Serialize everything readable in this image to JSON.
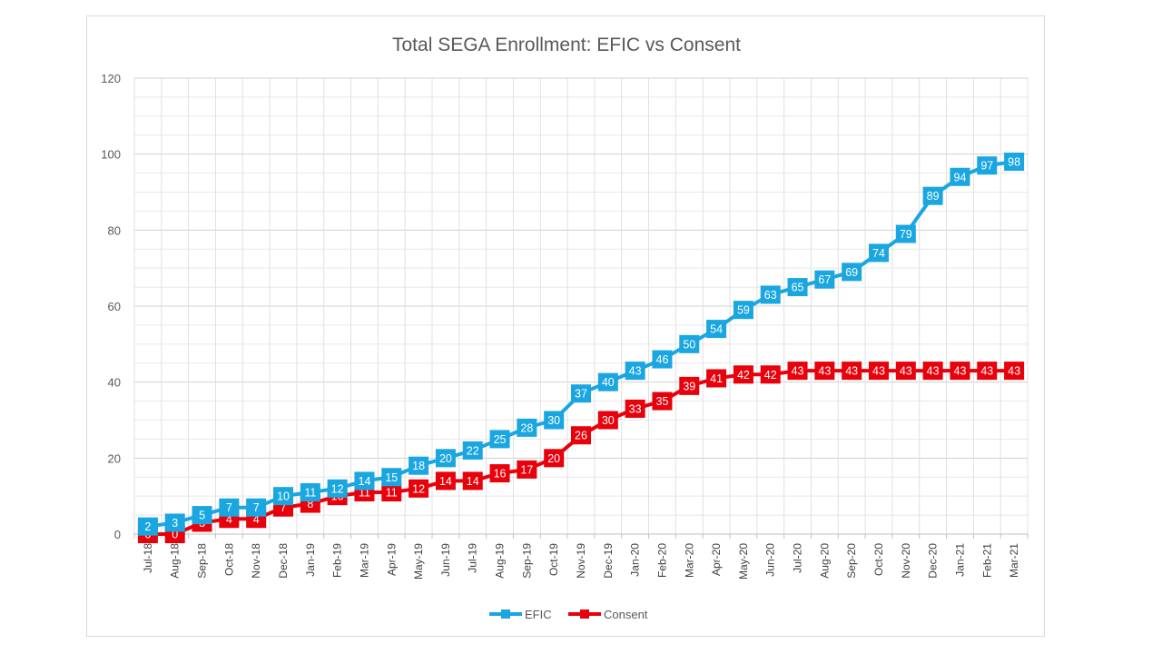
{
  "chart_data": {
    "type": "line",
    "title": "Total SEGA Enrollment: EFIC vs Consent",
    "xlabel": "",
    "ylabel": "",
    "ylim": [
      0,
      120
    ],
    "yticks": [
      0,
      20,
      40,
      60,
      80,
      100,
      120
    ],
    "minor_grid_step": 5,
    "grid": true,
    "legend_position": "bottom",
    "categories": [
      "Jul-18",
      "Aug-18",
      "Sep-18",
      "Oct-18",
      "Nov-18",
      "Dec-18",
      "Jan-19",
      "Feb-19",
      "Mar-19",
      "Apr-19",
      "May-19",
      "Jun-19",
      "Jul-19",
      "Aug-19",
      "Sep-19",
      "Oct-19",
      "Nov-19",
      "Dec-19",
      "Jan-20",
      "Feb-20",
      "Mar-20",
      "Apr-20",
      "May-20",
      "Jun-20",
      "Jul-20",
      "Aug-20",
      "Sep-20",
      "Oct-20",
      "Nov-20",
      "Dec-20",
      "Jan-21",
      "Feb-21",
      "Mar-21"
    ],
    "series": [
      {
        "name": "EFIC",
        "color": "#1aa6e0",
        "values": [
          2,
          3,
          5,
          7,
          7,
          10,
          11,
          12,
          14,
          15,
          18,
          20,
          22,
          25,
          28,
          30,
          37,
          40,
          43,
          46,
          50,
          54,
          59,
          63,
          65,
          67,
          69,
          74,
          79,
          89,
          94,
          97,
          98
        ]
      },
      {
        "name": "Consent",
        "color": "#e8000b",
        "values": [
          0,
          0,
          3,
          4,
          4,
          7,
          8,
          10,
          11,
          11,
          12,
          14,
          14,
          16,
          17,
          20,
          26,
          30,
          33,
          35,
          39,
          41,
          42,
          42,
          43,
          43,
          43,
          43,
          43,
          43,
          43,
          43,
          43
        ]
      }
    ]
  }
}
